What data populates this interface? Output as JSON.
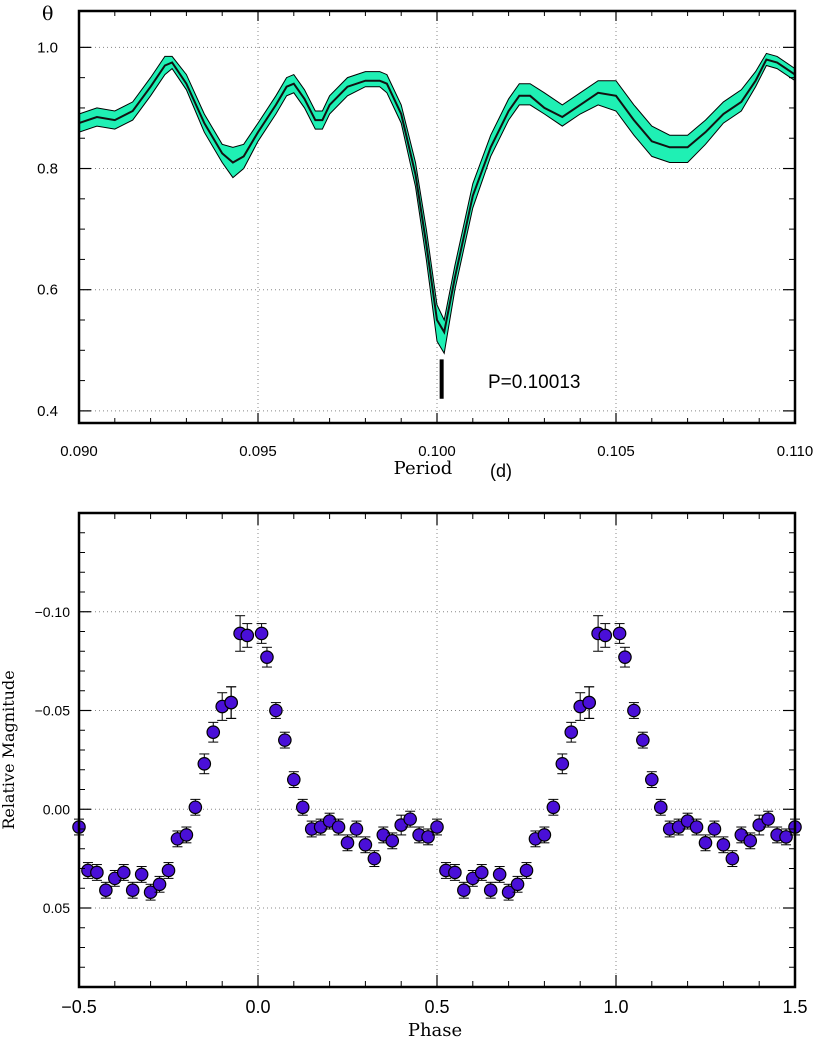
{
  "colors": {
    "band": "#1ff0b4",
    "line": "#111111",
    "point": "#4a0fd8",
    "axis": "#000000",
    "grid": "#888888"
  },
  "chart_data": [
    {
      "type": "line",
      "ylabel": "θ",
      "xlabel": "Period",
      "xunit": "(d)",
      "xlim": [
        0.09,
        0.11
      ],
      "ylim": [
        0.38,
        1.06
      ],
      "xticks": [
        "0.090",
        "0.095",
        "0.100",
        "0.105",
        "0.110"
      ],
      "xtick_values": [
        0.09,
        0.095,
        0.1,
        0.105,
        0.11
      ],
      "yticks": [
        "0.4",
        "0.6",
        "0.8",
        "1.0"
      ],
      "ytick_values": [
        0.4,
        0.6,
        0.8,
        1.0
      ],
      "grid": true,
      "annotation": {
        "text": "P=0.10013",
        "x": 0.10013,
        "marker_y": [
          0.42,
          0.485
        ]
      },
      "series": [
        {
          "x": [
            0.09,
            0.0905,
            0.091,
            0.0915,
            0.092,
            0.0924,
            0.0926,
            0.093,
            0.0935,
            0.094,
            0.0943,
            0.0946,
            0.095,
            0.0955,
            0.0958,
            0.096,
            0.0963,
            0.0966,
            0.0968,
            0.097,
            0.0975,
            0.098,
            0.0984,
            0.0986,
            0.099,
            0.0994,
            0.0997,
            0.1,
            0.1002,
            0.1005,
            0.101,
            0.1015,
            0.102,
            0.1023,
            0.1026,
            0.103,
            0.1035,
            0.104,
            0.1045,
            0.105,
            0.1055,
            0.106,
            0.1065,
            0.107,
            0.1075,
            0.108,
            0.1085,
            0.1089,
            0.1092,
            0.1095,
            0.11
          ],
          "y": [
            0.875,
            0.885,
            0.88,
            0.895,
            0.935,
            0.97,
            0.975,
            0.94,
            0.875,
            0.825,
            0.81,
            0.82,
            0.86,
            0.905,
            0.935,
            0.94,
            0.915,
            0.88,
            0.88,
            0.905,
            0.935,
            0.945,
            0.945,
            0.94,
            0.89,
            0.79,
            0.675,
            0.55,
            0.53,
            0.62,
            0.755,
            0.835,
            0.895,
            0.92,
            0.92,
            0.9,
            0.885,
            0.905,
            0.925,
            0.92,
            0.88,
            0.845,
            0.835,
            0.835,
            0.86,
            0.89,
            0.91,
            0.945,
            0.98,
            0.975,
            0.955
          ],
          "lower": [
            0.86,
            0.87,
            0.865,
            0.88,
            0.92,
            0.955,
            0.965,
            0.93,
            0.86,
            0.81,
            0.785,
            0.8,
            0.845,
            0.89,
            0.92,
            0.925,
            0.9,
            0.865,
            0.865,
            0.89,
            0.92,
            0.935,
            0.935,
            0.925,
            0.875,
            0.77,
            0.65,
            0.515,
            0.495,
            0.6,
            0.735,
            0.82,
            0.88,
            0.905,
            0.905,
            0.89,
            0.87,
            0.89,
            0.905,
            0.895,
            0.855,
            0.82,
            0.81,
            0.81,
            0.84,
            0.875,
            0.895,
            0.935,
            0.97,
            0.965,
            0.945
          ],
          "upper": [
            0.89,
            0.9,
            0.895,
            0.91,
            0.95,
            0.985,
            0.985,
            0.955,
            0.89,
            0.84,
            0.835,
            0.84,
            0.875,
            0.92,
            0.95,
            0.955,
            0.93,
            0.895,
            0.895,
            0.92,
            0.95,
            0.96,
            0.96,
            0.955,
            0.905,
            0.81,
            0.7,
            0.575,
            0.55,
            0.64,
            0.775,
            0.855,
            0.915,
            0.94,
            0.94,
            0.925,
            0.905,
            0.925,
            0.945,
            0.945,
            0.905,
            0.87,
            0.855,
            0.855,
            0.88,
            0.91,
            0.93,
            0.96,
            0.99,
            0.985,
            0.965
          ]
        }
      ]
    },
    {
      "type": "scatter",
      "xlabel": "Phase",
      "ylabel": "Relative Magnitude",
      "xlim": [
        -0.5,
        1.5
      ],
      "ylim": [
        0.09,
        -0.15
      ],
      "y_inverted": true,
      "xticks": [
        "−0.5",
        "0.0",
        "0.5",
        "1.0",
        "1.5"
      ],
      "xtick_values": [
        -0.5,
        0.0,
        0.5,
        1.0,
        1.5
      ],
      "yticks": [
        "−0.10",
        "−0.05",
        "0.00",
        "0.05"
      ],
      "ytick_values": [
        -0.1,
        -0.05,
        0.0,
        0.05
      ],
      "grid": true,
      "series": [
        {
          "x": [
            0.01,
            0.025,
            0.05,
            0.075,
            0.1,
            0.125,
            0.15,
            0.175,
            0.2,
            0.225,
            0.25,
            0.275,
            0.3,
            0.325,
            0.35,
            0.375,
            0.4,
            0.425,
            0.45,
            0.475,
            0.5,
            0.525,
            0.55,
            0.575,
            0.6,
            0.625,
            0.65,
            0.675,
            0.7,
            0.725,
            0.75,
            0.775,
            0.8,
            0.825,
            0.85,
            0.875,
            0.9,
            0.925,
            0.95
          ],
          "y": [
            -0.089,
            -0.077,
            -0.05,
            -0.035,
            -0.015,
            -0.001,
            0.01,
            0.009,
            0.006,
            0.009,
            0.017,
            0.01,
            0.018,
            0.025,
            0.013,
            0.016,
            0.008,
            0.005,
            0.013,
            0.014,
            0.009,
            0.031,
            0.032,
            0.041,
            0.035,
            0.032,
            0.041,
            0.033,
            0.042,
            0.038,
            0.031,
            0.015,
            0.013,
            -0.001,
            -0.023,
            -0.039,
            -0.052,
            -0.054,
            -0.089
          ],
          "err": [
            0.005,
            0.005,
            0.004,
            0.004,
            0.004,
            0.004,
            0.004,
            0.004,
            0.004,
            0.004,
            0.004,
            0.004,
            0.004,
            0.004,
            0.004,
            0.004,
            0.005,
            0.004,
            0.004,
            0.004,
            0.004,
            0.004,
            0.004,
            0.004,
            0.004,
            0.004,
            0.004,
            0.004,
            0.004,
            0.004,
            0.004,
            0.004,
            0.004,
            0.004,
            0.005,
            0.005,
            0.007,
            0.008,
            0.009
          ],
          "extra": [
            {
              "x": -0.03,
              "y": -0.088,
              "err": 0.006
            },
            {
              "x": -0.075,
              "y": -0.054,
              "err": 0.008
            }
          ]
        }
      ]
    }
  ]
}
